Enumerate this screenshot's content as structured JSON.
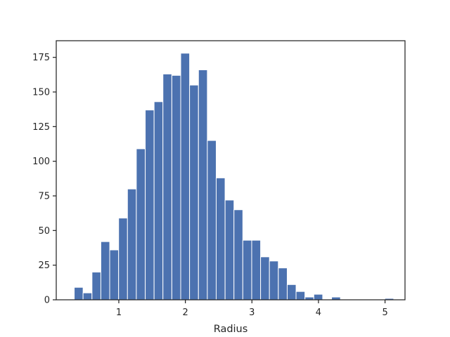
{
  "chart_data": {
    "type": "bar",
    "title": "",
    "xlabel": "Radius",
    "ylabel": "",
    "xlim": [
      0.06,
      5.3
    ],
    "ylim": [
      0,
      187
    ],
    "grid": false,
    "bar_color": "#4c72b0",
    "bin_width": 0.1333,
    "bins": [
      {
        "left": 0.33,
        "count": 9
      },
      {
        "left": 0.463,
        "count": 5
      },
      {
        "left": 0.597,
        "count": 20
      },
      {
        "left": 0.73,
        "count": 42
      },
      {
        "left": 0.863,
        "count": 36
      },
      {
        "left": 0.997,
        "count": 59
      },
      {
        "left": 1.13,
        "count": 80
      },
      {
        "left": 1.263,
        "count": 109
      },
      {
        "left": 1.397,
        "count": 137
      },
      {
        "left": 1.53,
        "count": 143
      },
      {
        "left": 1.663,
        "count": 163
      },
      {
        "left": 1.797,
        "count": 162
      },
      {
        "left": 1.93,
        "count": 178
      },
      {
        "left": 2.063,
        "count": 155
      },
      {
        "left": 2.197,
        "count": 166
      },
      {
        "left": 2.33,
        "count": 115
      },
      {
        "left": 2.463,
        "count": 88
      },
      {
        "left": 2.597,
        "count": 72
      },
      {
        "left": 2.73,
        "count": 65
      },
      {
        "left": 2.863,
        "count": 43
      },
      {
        "left": 2.997,
        "count": 43
      },
      {
        "left": 3.13,
        "count": 31
      },
      {
        "left": 3.263,
        "count": 28
      },
      {
        "left": 3.397,
        "count": 23
      },
      {
        "left": 3.53,
        "count": 11
      },
      {
        "left": 3.663,
        "count": 6
      },
      {
        "left": 3.797,
        "count": 2
      },
      {
        "left": 3.93,
        "count": 4
      },
      {
        "left": 4.063,
        "count": 0
      },
      {
        "left": 4.197,
        "count": 2
      },
      {
        "left": 4.33,
        "count": 0
      },
      {
        "left": 4.463,
        "count": 0
      },
      {
        "left": 4.597,
        "count": 0
      },
      {
        "left": 4.73,
        "count": 0
      },
      {
        "left": 4.863,
        "count": 0
      },
      {
        "left": 4.997,
        "count": 1
      }
    ],
    "x_ticks": [
      {
        "value": 1,
        "label": "1"
      },
      {
        "value": 2,
        "label": "2"
      },
      {
        "value": 3,
        "label": "3"
      },
      {
        "value": 4,
        "label": "4"
      },
      {
        "value": 5,
        "label": "5"
      }
    ],
    "y_ticks": [
      {
        "value": 0,
        "label": "0"
      },
      {
        "value": 25,
        "label": "25"
      },
      {
        "value": 50,
        "label": "50"
      },
      {
        "value": 75,
        "label": "75"
      },
      {
        "value": 100,
        "label": "100"
      },
      {
        "value": 125,
        "label": "125"
      },
      {
        "value": 150,
        "label": "150"
      },
      {
        "value": 175,
        "label": "175"
      }
    ]
  }
}
